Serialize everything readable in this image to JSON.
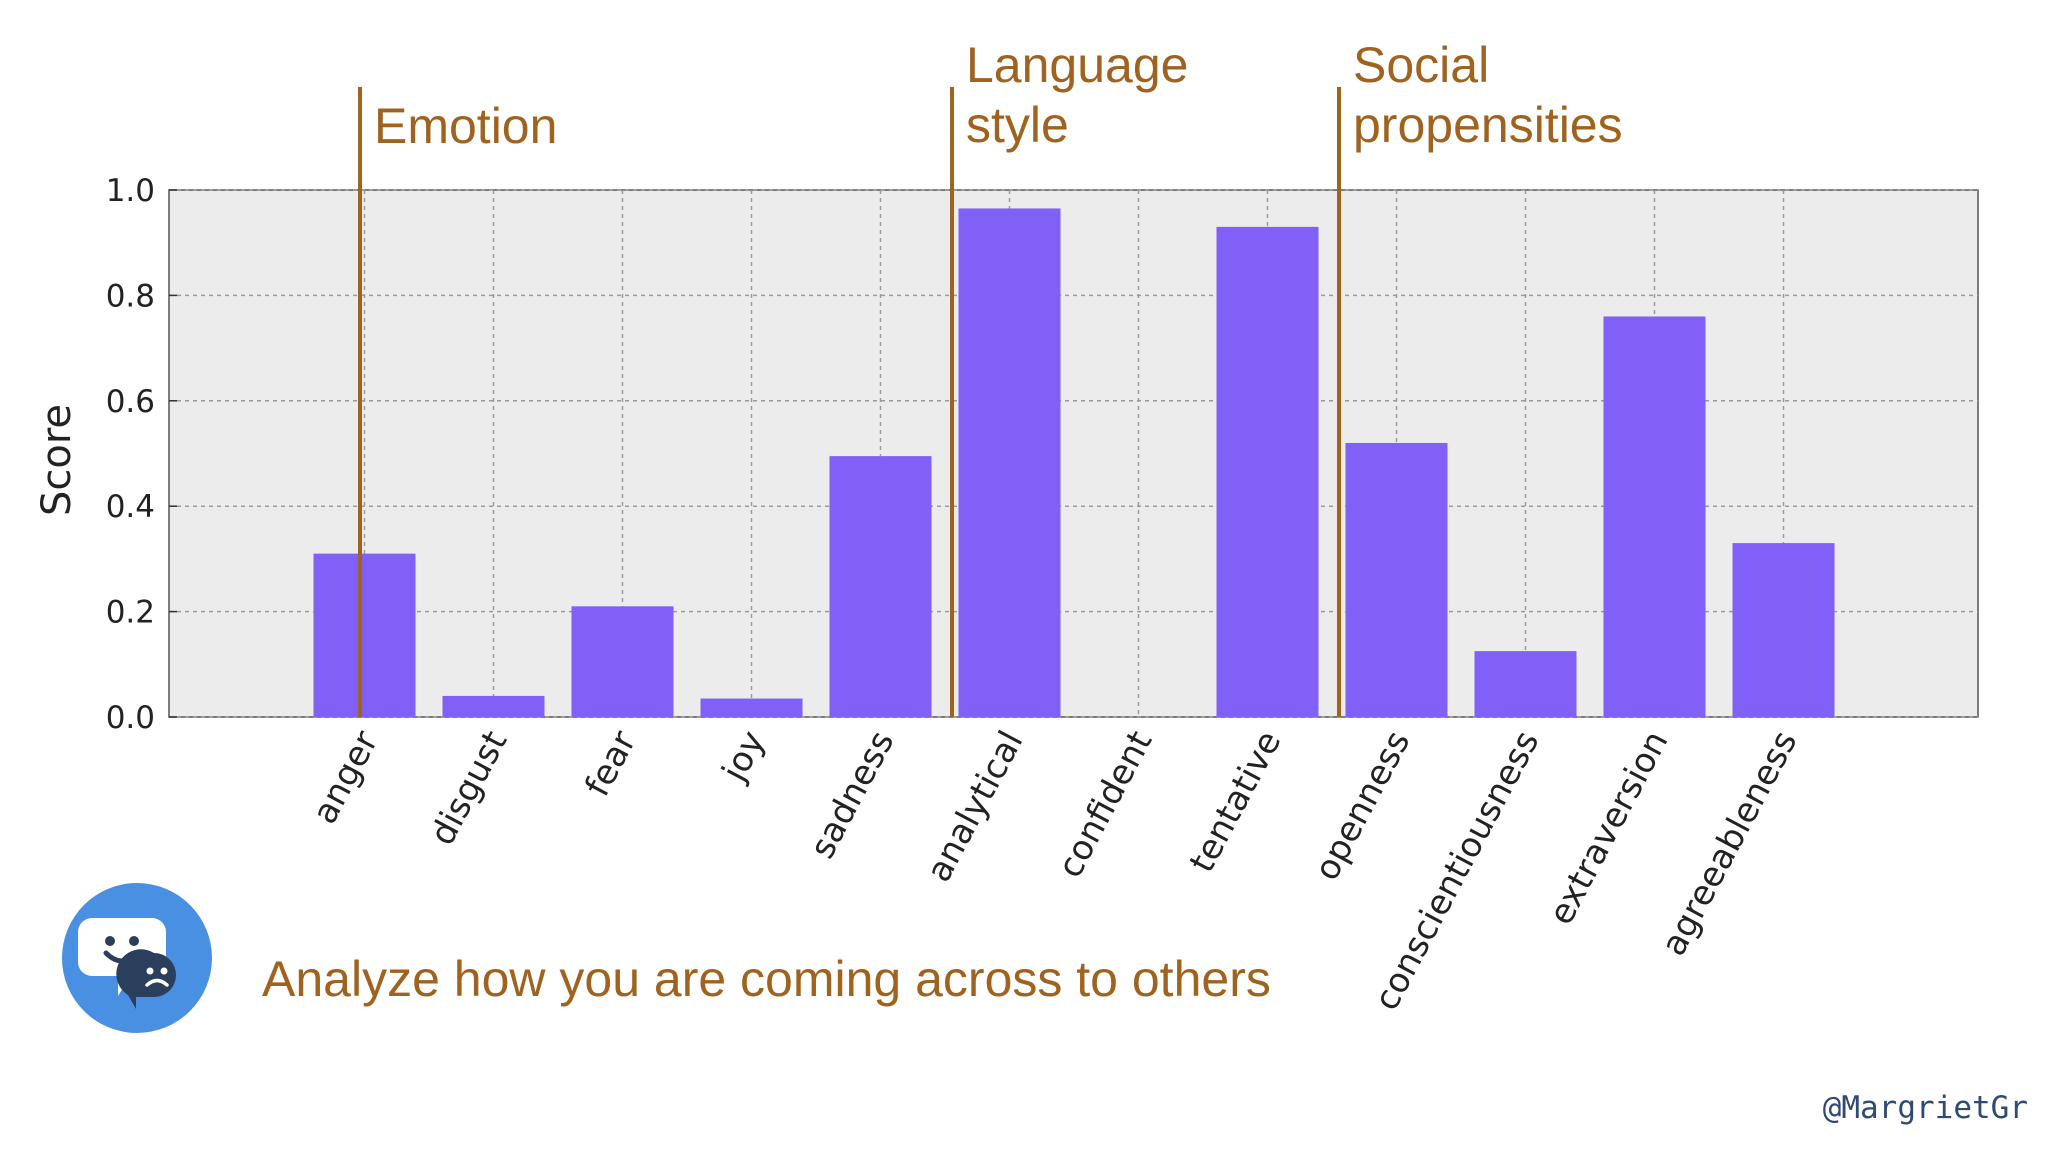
{
  "chart_data": {
    "type": "bar",
    "title": "",
    "xlabel": "",
    "ylabel": "Score",
    "ylim": [
      0,
      1.0
    ],
    "yticks": [
      "0.0",
      "0.2",
      "0.4",
      "0.6",
      "0.8",
      "1.0"
    ],
    "grid": true,
    "categories": [
      "anger",
      "disgust",
      "fear",
      "joy",
      "sadness",
      "analytical",
      "confident",
      "tentative",
      "openness",
      "conscientiousness",
      "extraversion",
      "agreeableness"
    ],
    "values": [
      0.31,
      0.04,
      0.21,
      0.035,
      0.495,
      0.965,
      0.0,
      0.93,
      0.52,
      0.125,
      0.76,
      0.33
    ],
    "bar_color": "#8060f6",
    "groups": [
      {
        "lines": [
          "Emotion"
        ],
        "categories": [
          "anger",
          "disgust",
          "fear",
          "joy",
          "sadness"
        ]
      },
      {
        "lines": [
          "Language",
          "style"
        ],
        "categories": [
          "analytical",
          "confident",
          "tentative"
        ]
      },
      {
        "lines": [
          "Social",
          "propensities"
        ],
        "categories": [
          "openness",
          "conscientiousness",
          "extraversion",
          "agreeableness"
        ]
      }
    ],
    "group_color": "#a0621f"
  },
  "tagline": "Analyze how you are coming across to others",
  "handle": "@MargrietGr",
  "logo_icon": "chat-bubbles-happy-sad-icon"
}
